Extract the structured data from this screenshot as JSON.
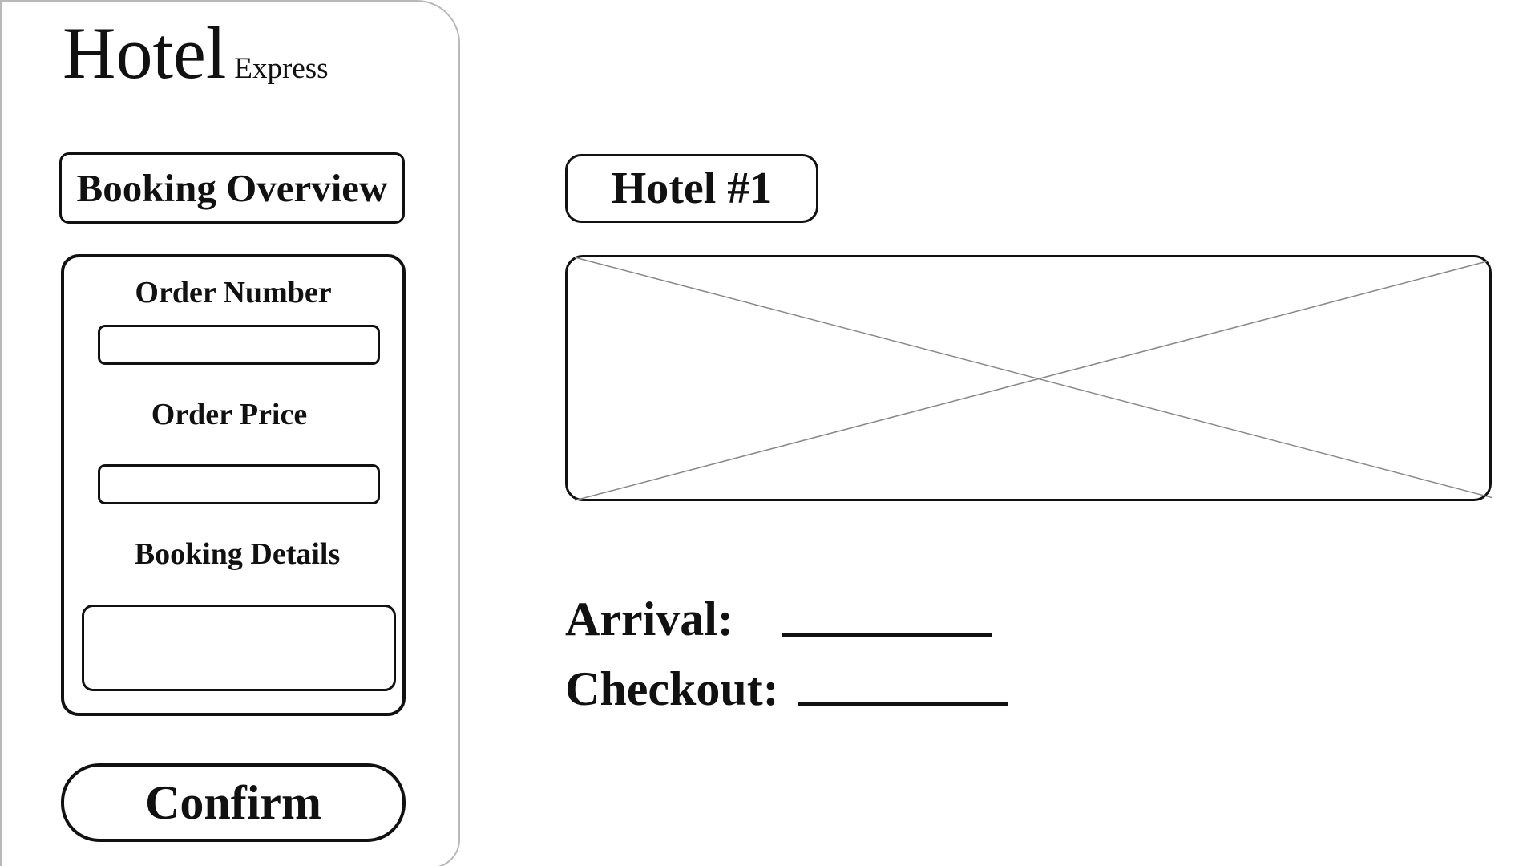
{
  "brand": {
    "title": "Hotel",
    "subtitle": "Express"
  },
  "sidebar": {
    "overview_label": "Booking Overview",
    "order_number_label": "Order Number",
    "order_number_value": "",
    "order_price_label": "Order Price",
    "order_price_value": "",
    "booking_details_label": "Booking Details",
    "booking_details_value": "",
    "confirm_label": "Confirm"
  },
  "main": {
    "hotel_tab_label": "Hotel #1",
    "image_icon": "image-placeholder-icon",
    "arrival_label": "Arrival:",
    "arrival_value": "",
    "checkout_label": "Checkout:",
    "checkout_value": ""
  }
}
